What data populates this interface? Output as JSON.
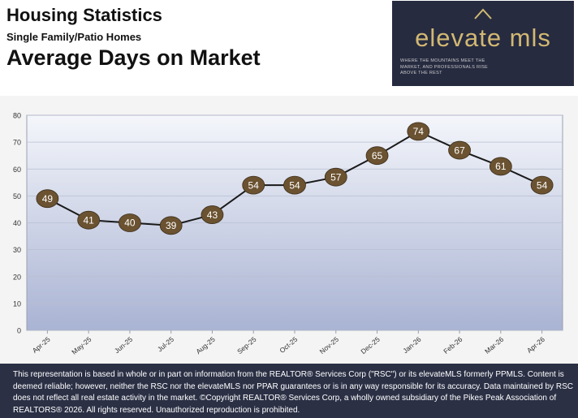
{
  "header": {
    "title": "Housing Statistics",
    "subtitle": "Single Family/Patio Homes",
    "heading": "Average Days on Market"
  },
  "logo": {
    "text": "elevate mls",
    "tagline": "WHERE THE MOUNTAINS MEET THE MARKET, AND PROFESSIONALS RISE ABOVE THE REST"
  },
  "chart_data": {
    "type": "line",
    "title": "Average Days on Market",
    "categories": [
      "Apr-25",
      "May-25",
      "Jun-25",
      "Jul-25",
      "Aug-25",
      "Sep-25",
      "Oct-25",
      "Nov-25",
      "Dec-25",
      "Jan-26",
      "Feb-26",
      "Mar-26",
      "Apr-26"
    ],
    "values": [
      49,
      41,
      40,
      39,
      43,
      54,
      54,
      57,
      65,
      74,
      67,
      61,
      54
    ],
    "ylim": [
      0,
      80
    ],
    "yticks": [
      0,
      10,
      20,
      30,
      40,
      50,
      60,
      70,
      80
    ],
    "xlabel": "",
    "ylabel": "",
    "grid": true,
    "legend": "none",
    "colors": {
      "line": "#1a1a1a",
      "marker": "#6b5230",
      "marker_text": "#ffffff",
      "plot_top": "#f4f6fb",
      "plot_bottom": "#a9b3d3"
    }
  },
  "footer": {
    "text": "This representation is based in whole or in part on information from the REALTOR® Services Corp (\"RSC\") or its elevateMLS formerly PPMLS. Content is deemed reliable; however, neither the RSC nor the elevateMLS nor PPAR guarantees or is in any way responsible for its accuracy. Data maintained by RSC does not reflect all real estate activity in the market. ©Copyright REALTOR® Services Corp, a wholly owned subsidiary of the Pikes Peak Association of REALTORS® 2026. All rights reserved. Unauthorized reproduction is prohibited."
  }
}
